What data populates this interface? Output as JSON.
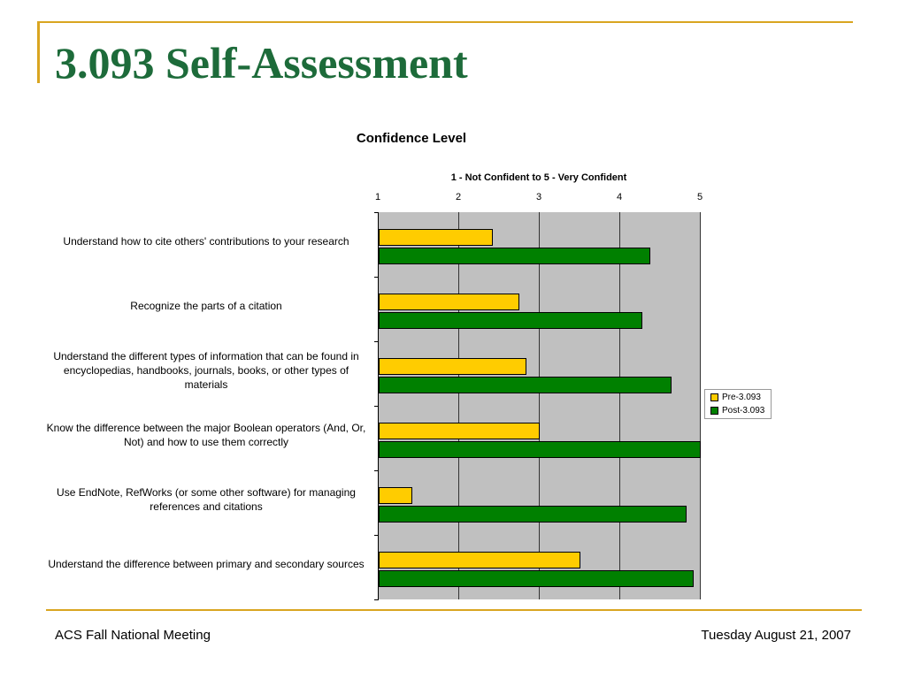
{
  "slide": {
    "title": "3.093 Self-Assessment"
  },
  "footer": {
    "left": "ACS Fall National Meeting",
    "right": "Tuesday August 21, 2007"
  },
  "colors": {
    "accent": "#d9a520",
    "title": "#1d6b3a",
    "pre": "#ffcc00",
    "post": "#008000",
    "plot_bg": "#c0c0c0"
  },
  "chart_data": {
    "type": "bar",
    "orientation": "horizontal",
    "title": "Confidence Level",
    "xlabel": "1 - Not Confident to 5 - Very Confident",
    "x_axis_position": "top",
    "xlim": [
      1,
      5
    ],
    "xticks": [
      "1",
      "2",
      "3",
      "4",
      "5"
    ],
    "grid": true,
    "legend_position": "right",
    "categories": [
      "Understand how to cite others' contributions to your research",
      "Recognize the parts of a citation",
      "Understand the different types of information that can be found in encyclopedias, handbooks, journals, books, or other types of materials",
      "Know the difference between the major Boolean operators (And, Or, Not) and how to use them correctly",
      "Use EndNote, RefWorks (or some other software) for managing references and citations",
      "Understand the difference between primary and secondary sources"
    ],
    "series": [
      {
        "name": "Pre-3.093",
        "color": "#ffcc00",
        "values": [
          2.42,
          2.75,
          2.84,
          3.0,
          1.42,
          3.5
        ]
      },
      {
        "name": "Post-3.093",
        "color": "#008000",
        "values": [
          4.37,
          4.27,
          4.64,
          5.0,
          4.82,
          4.91
        ]
      }
    ]
  }
}
